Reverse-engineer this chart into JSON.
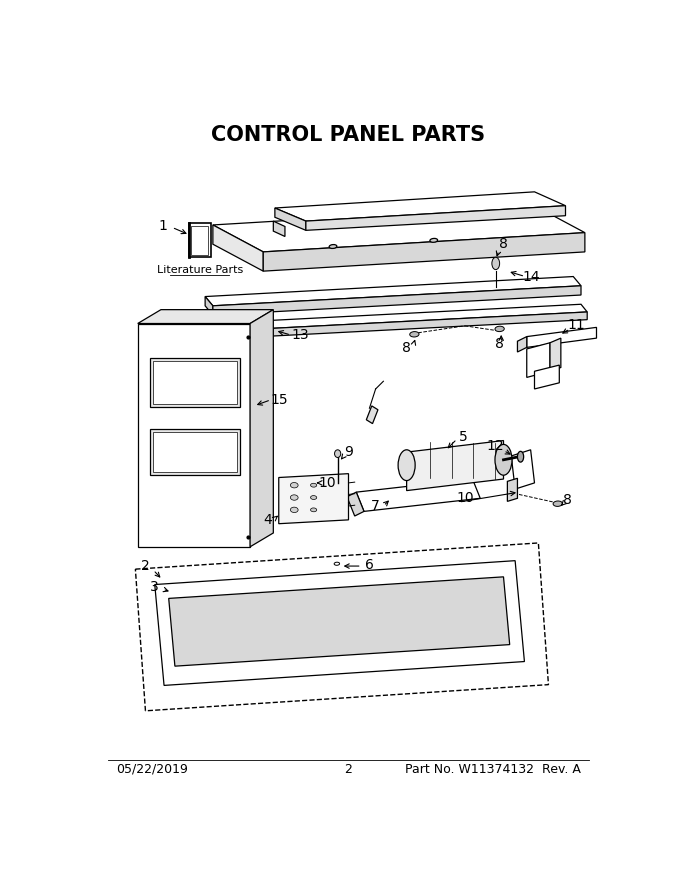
{
  "title": "CONTROL PANEL PARTS",
  "footer_left": "05/22/2019",
  "footer_center": "2",
  "footer_right": "Part No. W11374132  Rev. A",
  "bg": "#ffffff",
  "lc": "#000000",
  "title_fs": 15,
  "label_fs": 10,
  "footer_fs": 9,
  "lit_parts_text": "Literature Parts"
}
